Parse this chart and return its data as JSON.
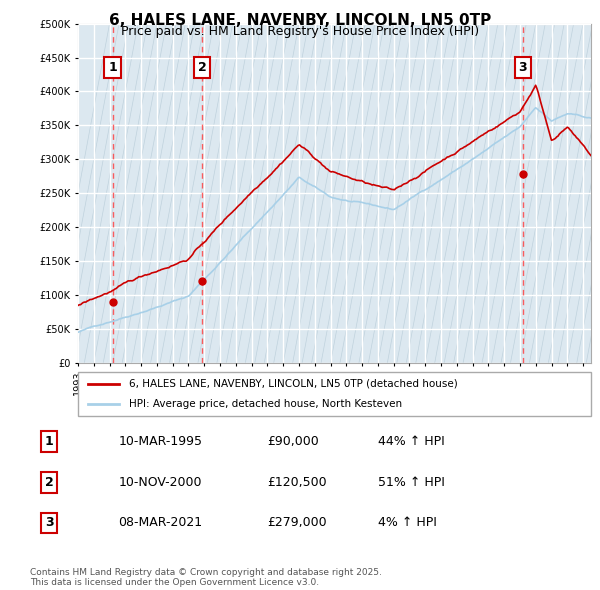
{
  "title": "6, HALES LANE, NAVENBY, LINCOLN, LN5 0TP",
  "subtitle": "Price paid vs. HM Land Registry's House Price Index (HPI)",
  "ylim": [
    0,
    500000
  ],
  "yticks": [
    0,
    50000,
    100000,
    150000,
    200000,
    250000,
    300000,
    350000,
    400000,
    450000,
    500000
  ],
  "ytick_labels": [
    "£0",
    "£50K",
    "£100K",
    "£150K",
    "£200K",
    "£250K",
    "£300K",
    "£350K",
    "£400K",
    "£450K",
    "£500K"
  ],
  "xlim_start": 1993.0,
  "xlim_end": 2025.5,
  "hpi_color": "#a8d0e8",
  "price_color": "#cc0000",
  "sale_line_color": "#ff4444",
  "background_color": "#dce8f0",
  "grid_color": "#ffffff",
  "sales": [
    {
      "label": "1",
      "date_num": 1995.19,
      "price": 90000,
      "date_str": "10-MAR-1995",
      "price_str": "£90,000",
      "hpi_str": "44% ↑ HPI"
    },
    {
      "label": "2",
      "date_num": 2000.86,
      "price": 120500,
      "date_str": "10-NOV-2000",
      "price_str": "£120,500",
      "hpi_str": "51% ↑ HPI"
    },
    {
      "label": "3",
      "date_num": 2021.18,
      "price": 279000,
      "date_str": "08-MAR-2021",
      "price_str": "£279,000",
      "hpi_str": "4% ↑ HPI"
    }
  ],
  "legend_entries": [
    "6, HALES LANE, NAVENBY, LINCOLN, LN5 0TP (detached house)",
    "HPI: Average price, detached house, North Kesteven"
  ],
  "footer": "Contains HM Land Registry data © Crown copyright and database right 2025.\nThis data is licensed under the Open Government Licence v3.0."
}
